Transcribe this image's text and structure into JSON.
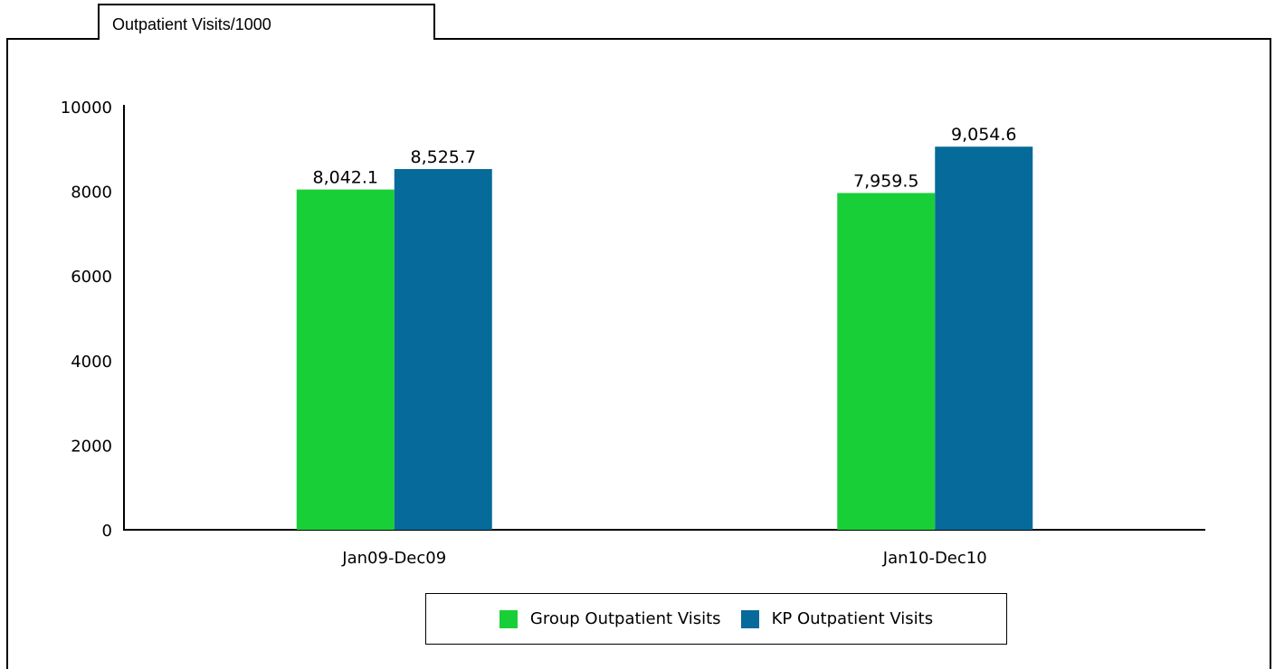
{
  "panel": {
    "title": "Outpatient Visits/1000"
  },
  "chart_data": {
    "type": "bar",
    "title": "",
    "xlabel": "",
    "ylabel": "",
    "ylim": [
      0,
      10000
    ],
    "yticks": [
      "0",
      "2000",
      "4000",
      "6000",
      "8000",
      "10000"
    ],
    "categories": [
      "Jan09-Dec09",
      "Jan10-Dec10"
    ],
    "series": [
      {
        "name": "Group Outpatient Visits",
        "color": "#19cf38",
        "values": [
          8042.1,
          7959.5
        ],
        "labels": [
          "8,042.1",
          "7,959.5"
        ]
      },
      {
        "name": "KP Outpatient Visits",
        "color": "#066a9a",
        "values": [
          8525.7,
          9054.6
        ],
        "labels": [
          "8,525.7",
          "9,054.6"
        ]
      }
    ],
    "legend_position": "bottom",
    "grid": false
  }
}
